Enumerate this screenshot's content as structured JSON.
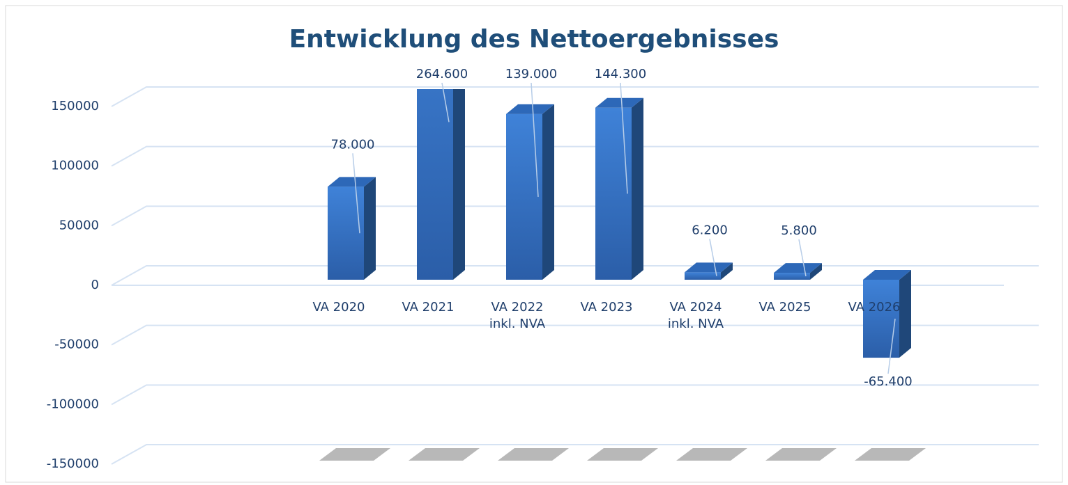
{
  "chart_data": {
    "type": "bar3d",
    "title": "Entwicklung des Nettoergebnisses",
    "categories": [
      "VA 2020",
      "VA 2021",
      "VA 2022\ninkl. NVA",
      "VA 2023",
      "VA 2024\ninkl. NVA",
      "VA 2025",
      "VA 2026"
    ],
    "values": [
      78000,
      264600,
      139000,
      144300,
      6200,
      5800,
      -65400
    ],
    "value_labels": [
      "78.000",
      "264.600",
      "139.000",
      "144.300",
      "6.200",
      "5.800",
      "-65.400"
    ],
    "color": "#3474cc",
    "ylim": [
      -150000,
      150000
    ],
    "yticks": [
      -150000,
      -100000,
      -50000,
      0,
      50000,
      100000,
      150000
    ],
    "grid": true
  }
}
